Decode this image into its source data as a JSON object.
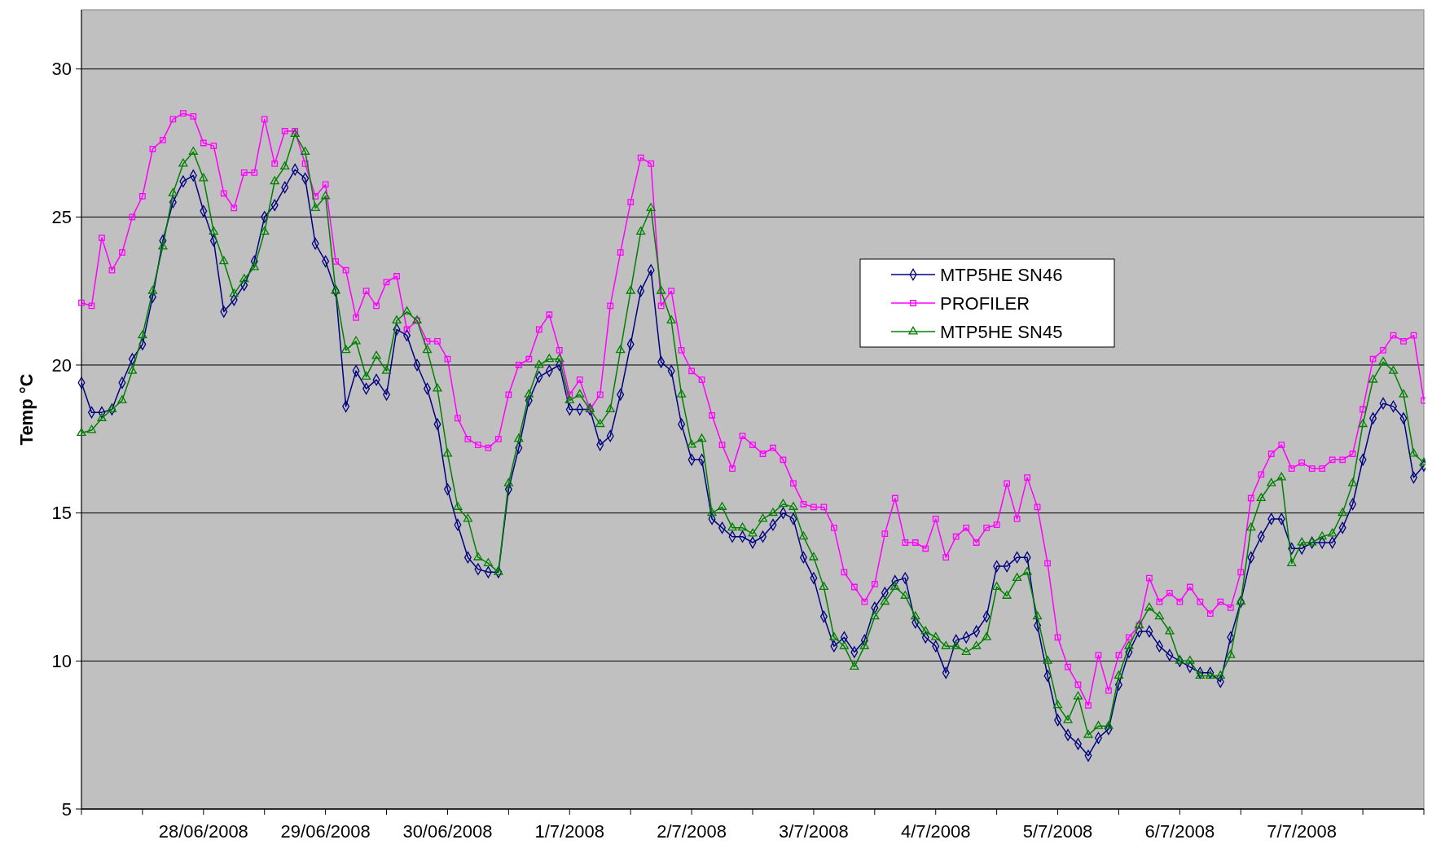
{
  "chart_data": {
    "type": "line",
    "ylabel": "Temp °C",
    "ylim": [
      5,
      32
    ],
    "yticks": [
      5,
      10,
      15,
      20,
      25,
      30
    ],
    "xlim": [
      "2008-06-27T00:00",
      "2008-07-08T00:00"
    ],
    "xticks": [
      {
        "value": "2008-06-27T00:00",
        "label": null
      },
      {
        "value": "2008-06-27T12:00",
        "label": null
      },
      {
        "value": "2008-06-28T00:00",
        "label": "28/06/2008"
      },
      {
        "value": "2008-06-28T12:00",
        "label": null
      },
      {
        "value": "2008-06-29T00:00",
        "label": "29/06/2008"
      },
      {
        "value": "2008-06-29T12:00",
        "label": null
      },
      {
        "value": "2008-06-30T00:00",
        "label": "30/06/2008"
      },
      {
        "value": "2008-06-30T12:00",
        "label": null
      },
      {
        "value": "2008-07-01T00:00",
        "label": "1/7/2008"
      },
      {
        "value": "2008-07-01T12:00",
        "label": null
      },
      {
        "value": "2008-07-02T00:00",
        "label": "2/7/2008"
      },
      {
        "value": "2008-07-02T12:00",
        "label": null
      },
      {
        "value": "2008-07-03T00:00",
        "label": "3/7/2008"
      },
      {
        "value": "2008-07-03T12:00",
        "label": null
      },
      {
        "value": "2008-07-04T00:00",
        "label": "4/7/2008"
      },
      {
        "value": "2008-07-04T12:00",
        "label": null
      },
      {
        "value": "2008-07-05T00:00",
        "label": "5/7/2008"
      },
      {
        "value": "2008-07-05T12:00",
        "label": null
      },
      {
        "value": "2008-07-06T00:00",
        "label": "6/7/2008"
      },
      {
        "value": "2008-07-06T12:00",
        "label": null
      },
      {
        "value": "2008-07-07T00:00",
        "label": "7/7/2008"
      },
      {
        "value": "2008-07-07T12:00",
        "label": null
      },
      {
        "value": "2008-07-08T00:00",
        "label": null
      }
    ],
    "grid": "y",
    "legend": "top right",
    "line_style": "solid",
    "x": [
      "2008-06-27T00:00",
      "2008-06-27T02:00",
      "2008-06-27T04:00",
      "2008-06-27T06:00",
      "2008-06-27T08:00",
      "2008-06-27T10:00",
      "2008-06-27T12:00",
      "2008-06-27T14:00",
      "2008-06-27T16:00",
      "2008-06-27T18:00",
      "2008-06-27T20:00",
      "2008-06-27T22:00",
      "2008-06-28T00:00",
      "2008-06-28T02:00",
      "2008-06-28T04:00",
      "2008-06-28T06:00",
      "2008-06-28T08:00",
      "2008-06-28T10:00",
      "2008-06-28T12:00",
      "2008-06-28T14:00",
      "2008-06-28T16:00",
      "2008-06-28T18:00",
      "2008-06-28T20:00",
      "2008-06-28T22:00",
      "2008-06-29T00:00",
      "2008-06-29T02:00",
      "2008-06-29T04:00",
      "2008-06-29T06:00",
      "2008-06-29T08:00",
      "2008-06-29T10:00",
      "2008-06-29T12:00",
      "2008-06-29T14:00",
      "2008-06-29T16:00",
      "2008-06-29T18:00",
      "2008-06-29T20:00",
      "2008-06-29T22:00",
      "2008-06-30T00:00",
      "2008-06-30T02:00",
      "2008-06-30T04:00",
      "2008-06-30T06:00",
      "2008-06-30T08:00",
      "2008-06-30T10:00",
      "2008-06-30T12:00",
      "2008-06-30T14:00",
      "2008-06-30T16:00",
      "2008-06-30T18:00",
      "2008-06-30T20:00",
      "2008-06-30T22:00",
      "2008-07-01T00:00",
      "2008-07-01T02:00",
      "2008-07-01T04:00",
      "2008-07-01T06:00",
      "2008-07-01T08:00",
      "2008-07-01T10:00",
      "2008-07-01T12:00",
      "2008-07-01T14:00",
      "2008-07-01T16:00",
      "2008-07-01T18:00",
      "2008-07-01T20:00",
      "2008-07-01T22:00",
      "2008-07-02T00:00",
      "2008-07-02T02:00",
      "2008-07-02T04:00",
      "2008-07-02T06:00",
      "2008-07-02T08:00",
      "2008-07-02T10:00",
      "2008-07-02T12:00",
      "2008-07-02T14:00",
      "2008-07-02T16:00",
      "2008-07-02T18:00",
      "2008-07-02T20:00",
      "2008-07-02T22:00",
      "2008-07-03T00:00",
      "2008-07-03T02:00",
      "2008-07-03T04:00",
      "2008-07-03T06:00",
      "2008-07-03T08:00",
      "2008-07-03T10:00",
      "2008-07-03T12:00",
      "2008-07-03T14:00",
      "2008-07-03T16:00",
      "2008-07-03T18:00",
      "2008-07-03T20:00",
      "2008-07-03T22:00",
      "2008-07-04T00:00",
      "2008-07-04T02:00",
      "2008-07-04T04:00",
      "2008-07-04T06:00",
      "2008-07-04T08:00",
      "2008-07-04T10:00",
      "2008-07-04T12:00",
      "2008-07-04T14:00",
      "2008-07-04T16:00",
      "2008-07-04T18:00",
      "2008-07-04T20:00",
      "2008-07-04T22:00",
      "2008-07-05T00:00",
      "2008-07-05T02:00",
      "2008-07-05T04:00",
      "2008-07-05T06:00",
      "2008-07-05T08:00",
      "2008-07-05T10:00",
      "2008-07-05T12:00",
      "2008-07-05T14:00",
      "2008-07-05T16:00",
      "2008-07-05T18:00",
      "2008-07-05T20:00",
      "2008-07-05T22:00",
      "2008-07-06T00:00",
      "2008-07-06T02:00",
      "2008-07-06T04:00",
      "2008-07-06T06:00",
      "2008-07-06T08:00",
      "2008-07-06T10:00",
      "2008-07-06T12:00",
      "2008-07-06T14:00",
      "2008-07-06T16:00",
      "2008-07-06T18:00",
      "2008-07-06T20:00",
      "2008-07-06T22:00",
      "2008-07-07T00:00",
      "2008-07-07T02:00",
      "2008-07-07T04:00",
      "2008-07-07T06:00",
      "2008-07-07T08:00",
      "2008-07-07T10:00",
      "2008-07-07T12:00",
      "2008-07-07T14:00",
      "2008-07-07T16:00",
      "2008-07-07T18:00",
      "2008-07-07T20:00",
      "2008-07-07T22:00",
      "2008-07-08T00:00"
    ],
    "series": [
      {
        "name": "MTP5HE SN46",
        "color": "#000080",
        "marker": "diamond",
        "values": [
          19.4,
          18.4,
          18.4,
          18.5,
          19.4,
          20.2,
          20.7,
          22.3,
          24.2,
          25.5,
          26.2,
          26.4,
          25.2,
          24.2,
          21.8,
          22.2,
          22.7,
          23.5,
          25.0,
          25.4,
          26.0,
          26.6,
          26.3,
          24.1,
          23.5,
          22.5,
          18.6,
          19.8,
          19.2,
          19.5,
          19.0,
          21.2,
          21.0,
          20.0,
          19.2,
          18.0,
          15.8,
          14.6,
          13.5,
          13.1,
          13.0,
          13.0,
          15.8,
          17.2,
          18.8,
          19.6,
          19.8,
          20.0,
          18.5,
          18.5,
          18.5,
          17.3,
          17.6,
          19.0,
          20.7,
          22.5,
          23.2,
          20.1,
          19.8,
          18.0,
          16.8,
          16.8,
          14.8,
          14.5,
          14.2,
          14.2,
          14.0,
          14.2,
          14.6,
          15.0,
          14.8,
          13.5,
          12.8,
          11.5,
          10.5,
          10.8,
          10.3,
          10.7,
          11.8,
          12.3,
          12.7,
          12.8,
          11.3,
          10.8,
          10.5,
          9.6,
          10.7,
          10.8,
          11.0,
          11.5,
          13.2,
          13.2,
          13.5,
          13.5,
          11.2,
          9.5,
          8.0,
          7.5,
          7.2,
          6.8,
          7.4,
          7.7,
          9.2,
          10.3,
          11.0,
          11.0,
          10.5,
          10.2,
          10.0,
          9.8,
          9.6,
          9.6,
          9.3,
          10.8,
          12.0,
          13.5,
          14.2,
          14.8,
          14.8,
          13.8,
          13.8,
          14.0,
          14.0,
          14.0,
          14.5,
          15.3,
          16.8,
          18.2,
          18.7,
          18.6,
          18.2,
          16.2,
          16.6
        ]
      },
      {
        "name": "PROFILER",
        "color": "#ff00ff",
        "marker": "square",
        "values": [
          22.1,
          22.0,
          24.3,
          23.2,
          23.8,
          25.0,
          25.7,
          27.3,
          27.6,
          28.3,
          28.5,
          28.4,
          27.5,
          27.4,
          25.8,
          25.3,
          26.5,
          26.5,
          28.3,
          26.8,
          27.9,
          27.9,
          26.8,
          25.7,
          26.1,
          23.5,
          23.2,
          21.6,
          22.5,
          22.0,
          22.8,
          23.0,
          21.2,
          21.5,
          20.8,
          20.8,
          20.2,
          18.2,
          17.5,
          17.3,
          17.2,
          17.5,
          19.0,
          20.0,
          20.2,
          21.2,
          21.7,
          20.5,
          19.0,
          19.5,
          18.5,
          19.0,
          22.0,
          23.8,
          25.5,
          27.0,
          26.8,
          22.0,
          22.5,
          20.5,
          19.8,
          19.5,
          18.3,
          17.3,
          16.5,
          17.6,
          17.3,
          17.0,
          17.2,
          16.8,
          16.0,
          15.3,
          15.2,
          15.2,
          14.5,
          13.0,
          12.5,
          12.0,
          12.6,
          14.3,
          15.5,
          14.0,
          14.0,
          13.8,
          14.8,
          13.5,
          14.2,
          14.5,
          14.0,
          14.5,
          14.6,
          16.0,
          14.8,
          16.2,
          15.2,
          13.3,
          10.8,
          9.8,
          9.2,
          8.5,
          10.2,
          9.0,
          10.2,
          10.8,
          11.2,
          12.8,
          12.0,
          12.3,
          12.0,
          12.5,
          12.0,
          11.6,
          12.0,
          11.8,
          13.0,
          15.5,
          16.3,
          17.0,
          17.3,
          16.5,
          16.7,
          16.5,
          16.5,
          16.8,
          16.8,
          17.0,
          18.5,
          20.2,
          20.5,
          21.0,
          20.8,
          21.0,
          18.8
        ]
      },
      {
        "name": "MTP5HE SN45",
        "color": "#008000",
        "marker": "triangle",
        "values": [
          17.7,
          17.8,
          18.2,
          18.5,
          18.8,
          19.8,
          21.0,
          22.5,
          24.0,
          25.8,
          26.8,
          27.2,
          26.3,
          24.5,
          23.5,
          22.4,
          22.9,
          23.3,
          24.5,
          26.2,
          26.7,
          27.8,
          27.2,
          25.3,
          25.7,
          22.5,
          20.5,
          20.8,
          19.6,
          20.3,
          19.8,
          21.5,
          21.8,
          21.5,
          20.5,
          19.2,
          17.0,
          15.2,
          14.8,
          13.5,
          13.3,
          13.0,
          16.0,
          17.5,
          19.0,
          20.0,
          20.2,
          20.2,
          18.8,
          19.0,
          18.5,
          18.0,
          18.5,
          20.5,
          22.5,
          24.5,
          25.3,
          22.5,
          21.5,
          19.0,
          17.3,
          17.5,
          15.0,
          15.2,
          14.5,
          14.5,
          14.3,
          14.8,
          15.0,
          15.3,
          15.2,
          14.2,
          13.5,
          12.5,
          10.8,
          10.5,
          9.8,
          10.5,
          11.5,
          12.0,
          12.5,
          12.2,
          11.5,
          11.0,
          10.8,
          10.5,
          10.5,
          10.3,
          10.5,
          10.8,
          12.5,
          12.2,
          12.8,
          13.0,
          11.5,
          10.0,
          8.5,
          8.0,
          8.8,
          7.5,
          7.8,
          7.8,
          9.5,
          10.5,
          11.2,
          11.8,
          11.5,
          11.0,
          10.0,
          10.0,
          9.5,
          9.5,
          9.5,
          10.2,
          12.0,
          14.5,
          15.5,
          16.0,
          16.2,
          13.3,
          14.0,
          14.0,
          14.2,
          14.3,
          15.0,
          16.0,
          18.0,
          19.5,
          20.1,
          19.8,
          19.0,
          17.0,
          16.7
        ]
      }
    ]
  }
}
